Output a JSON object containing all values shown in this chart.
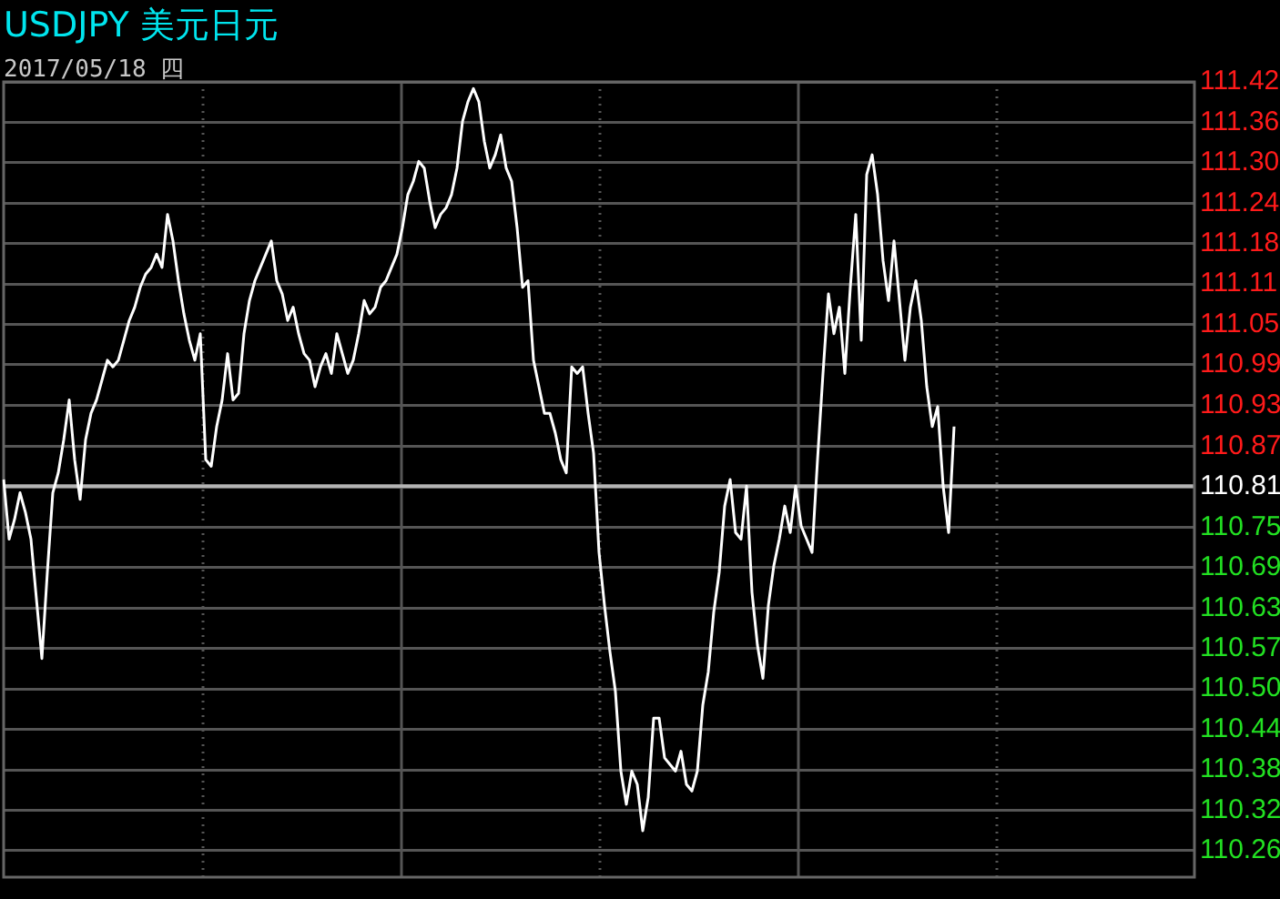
{
  "chart_data": {
    "type": "line",
    "title": "USDJPY 美元日元",
    "subtitle": "2017/05/18 四",
    "categories": [
      null,
      null,
      null,
      null,
      null,
      null,
      null,
      null,
      null,
      null,
      null,
      null,
      null,
      null,
      null,
      null,
      null,
      null,
      null,
      null,
      null,
      null,
      null,
      null,
      null,
      null,
      null,
      null,
      null,
      null,
      null,
      null,
      null,
      null,
      null,
      null,
      null,
      null,
      null,
      null,
      null,
      null,
      null,
      null,
      null,
      null,
      null,
      null,
      null,
      null,
      null,
      null,
      null,
      null,
      null,
      null,
      null,
      null,
      null,
      null,
      null,
      null,
      null,
      null,
      null,
      null,
      null,
      null,
      null,
      null,
      null,
      null,
      null,
      null,
      null,
      null,
      null,
      null,
      null,
      null,
      null,
      null,
      null,
      null,
      null,
      null,
      null,
      null,
      null,
      null,
      null,
      null,
      null,
      null,
      null,
      null,
      null,
      null,
      null,
      null,
      null,
      null,
      null,
      null,
      null,
      null,
      null,
      null,
      null,
      null,
      null,
      null,
      null,
      null,
      null,
      null,
      null,
      null,
      null,
      null,
      null,
      null,
      null,
      null,
      null,
      null,
      null,
      null,
      null,
      null,
      null,
      null,
      null,
      null,
      null,
      null,
      null,
      null,
      null,
      null,
      null,
      null,
      null,
      null,
      null,
      null,
      null,
      null,
      null,
      null,
      null,
      null,
      null,
      null,
      null,
      null,
      null,
      null,
      null,
      null,
      null,
      null,
      null,
      null,
      null,
      null,
      null,
      null,
      null,
      null,
      null,
      null,
      null,
      null,
      null,
      null,
      null,
      null,
      null,
      null,
      null,
      null,
      null,
      null,
      null,
      null,
      null,
      null,
      null,
      null,
      null,
      null,
      null,
      null,
      null,
      null,
      null,
      null,
      null,
      null,
      null,
      null,
      null,
      null,
      null,
      null,
      null,
      null,
      null,
      null,
      null,
      null,
      null,
      null,
      null,
      null,
      null,
      null,
      null
    ],
    "series": [
      {
        "color": "#ffffff",
        "values": [
          110.82,
          110.73,
          110.76,
          110.8,
          110.77,
          110.73,
          110.64,
          110.55,
          110.68,
          110.8,
          110.83,
          110.88,
          110.94,
          110.85,
          110.79,
          110.88,
          110.92,
          110.94,
          110.97,
          111.0,
          110.99,
          111.0,
          111.03,
          111.06,
          111.08,
          111.11,
          111.13,
          111.14,
          111.16,
          111.14,
          111.22,
          111.18,
          111.12,
          111.07,
          111.03,
          111.0,
          111.04,
          110.85,
          110.84,
          110.9,
          110.94,
          111.01,
          110.94,
          110.95,
          111.04,
          111.09,
          111.12,
          111.14,
          111.16,
          111.18,
          111.12,
          111.1,
          111.06,
          111.08,
          111.04,
          111.01,
          111.0,
          110.96,
          110.99,
          111.01,
          110.98,
          111.04,
          111.01,
          110.98,
          111.0,
          111.04,
          111.09,
          111.07,
          111.08,
          111.11,
          111.12,
          111.14,
          111.16,
          111.2,
          111.25,
          111.27,
          111.3,
          111.29,
          111.24,
          111.2,
          111.22,
          111.23,
          111.25,
          111.29,
          111.36,
          111.39,
          111.41,
          111.39,
          111.33,
          111.29,
          111.31,
          111.34,
          111.29,
          111.27,
          111.2,
          111.11,
          111.12,
          111.0,
          110.96,
          110.92,
          110.92,
          110.89,
          110.85,
          110.83,
          110.99,
          110.98,
          110.99,
          110.92,
          110.86,
          110.71,
          110.63,
          110.56,
          110.5,
          110.38,
          110.33,
          110.38,
          110.36,
          110.29,
          110.34,
          110.46,
          110.46,
          110.4,
          110.39,
          110.38,
          110.41,
          110.36,
          110.35,
          110.38,
          110.48,
          110.53,
          110.62,
          110.68,
          110.78,
          110.82,
          110.74,
          110.73,
          110.81,
          110.65,
          110.57,
          110.52,
          110.63,
          110.69,
          110.73,
          110.78,
          110.74,
          110.81,
          110.75,
          110.73,
          110.71,
          110.85,
          110.98,
          111.1,
          111.04,
          111.08,
          110.98,
          111.11,
          111.22,
          111.03,
          111.28,
          111.31,
          111.25,
          111.15,
          111.09,
          111.18,
          111.09,
          111.0,
          111.08,
          111.12,
          111.06,
          110.96,
          110.9,
          110.93,
          110.81,
          110.74,
          110.9,
          null,
          null,
          null,
          null,
          null,
          null,
          null,
          null,
          null,
          null,
          null,
          null,
          null,
          null,
          null,
          null,
          null,
          null,
          null,
          null,
          null,
          null,
          null,
          null,
          null,
          null,
          null,
          null,
          null,
          null,
          null,
          null,
          null,
          null,
          null,
          null,
          null,
          null,
          null,
          null,
          null,
          null,
          null,
          null
        ]
      }
    ],
    "ylim": [
      110.22,
      111.42
    ],
    "yticks": [
      {
        "value": 110.26,
        "label": "110.26"
      },
      {
        "value": 110.321,
        "label": "110.32"
      },
      {
        "value": 110.382,
        "label": "110.38"
      },
      {
        "value": 110.443,
        "label": "110.44"
      },
      {
        "value": 110.504,
        "label": "110.50"
      },
      {
        "value": 110.565,
        "label": "110.57"
      },
      {
        "value": 110.626,
        "label": "110.63"
      },
      {
        "value": 110.687,
        "label": "110.69"
      },
      {
        "value": 110.748,
        "label": "110.75"
      },
      {
        "value": 110.809,
        "label": "110.81"
      },
      {
        "value": 110.87,
        "label": "110.87"
      },
      {
        "value": 110.932,
        "label": "110.93"
      },
      {
        "value": 110.993,
        "label": "110.99"
      },
      {
        "value": 111.054,
        "label": "111.05"
      },
      {
        "value": 111.115,
        "label": "111.11"
      },
      {
        "value": 111.176,
        "label": "111.18"
      },
      {
        "value": 111.237,
        "label": "111.24"
      },
      {
        "value": 111.298,
        "label": "111.30"
      },
      {
        "value": 111.359,
        "label": "111.36"
      },
      {
        "value": 111.42,
        "label": "111.42"
      }
    ],
    "ref_lines": [
      {
        "axis": "y",
        "value": 110.81,
        "color": "#b4b4b4"
      }
    ],
    "grid": true,
    "legend": false,
    "tick_labels": "y",
    "marker": "none",
    "line_style": "solid"
  }
}
